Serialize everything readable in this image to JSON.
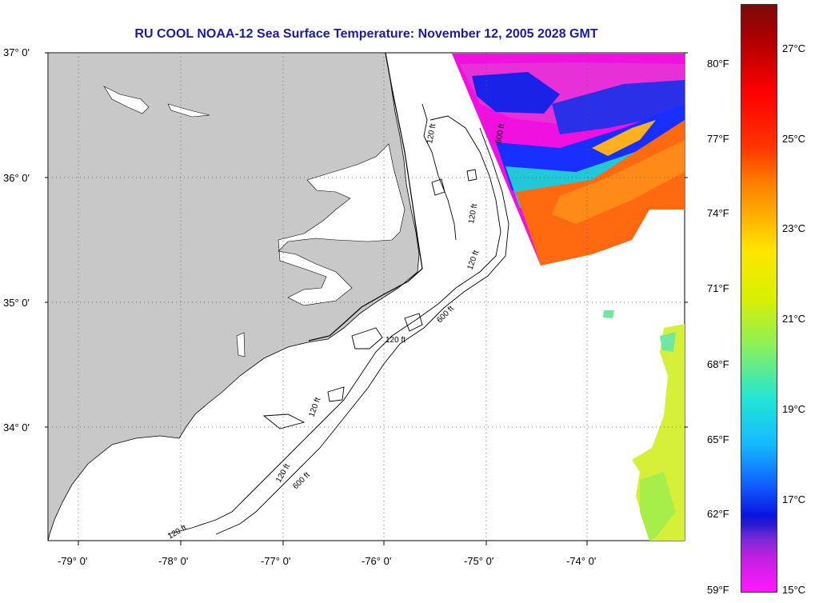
{
  "title": "RU COOL  NOAA-12  Sea Surface Temperature:  November 12, 2005 2028 GMT",
  "lat_labels": [
    "37° 0'",
    "36° 0'",
    "35° 0'",
    "34° 0'"
  ],
  "lon_labels": [
    "-79° 0'",
    "-78° 0'",
    "-77° 0'",
    "-76° 0'",
    "-75° 0'",
    "-74° 0'"
  ],
  "contour_labels": [
    "120 ft",
    "120 ft",
    "120 ft",
    "120 ft",
    "120 ft",
    "120 ft",
    "120 ft",
    "600 ft",
    "600 ft",
    "600 ft"
  ],
  "colorbar": {
    "fahrenheit": [
      "80°F",
      "77°F",
      "74°F",
      "71°F",
      "68°F",
      "65°F",
      "62°F",
      "59°F"
    ],
    "celsius": [
      "27°C",
      "25°C",
      "23°C",
      "21°C",
      "19°C",
      "17°C",
      "15°C"
    ]
  },
  "colors": {
    "title": "#1a1aa8",
    "land": "#c8c8c8",
    "water": "#ffffff"
  }
}
